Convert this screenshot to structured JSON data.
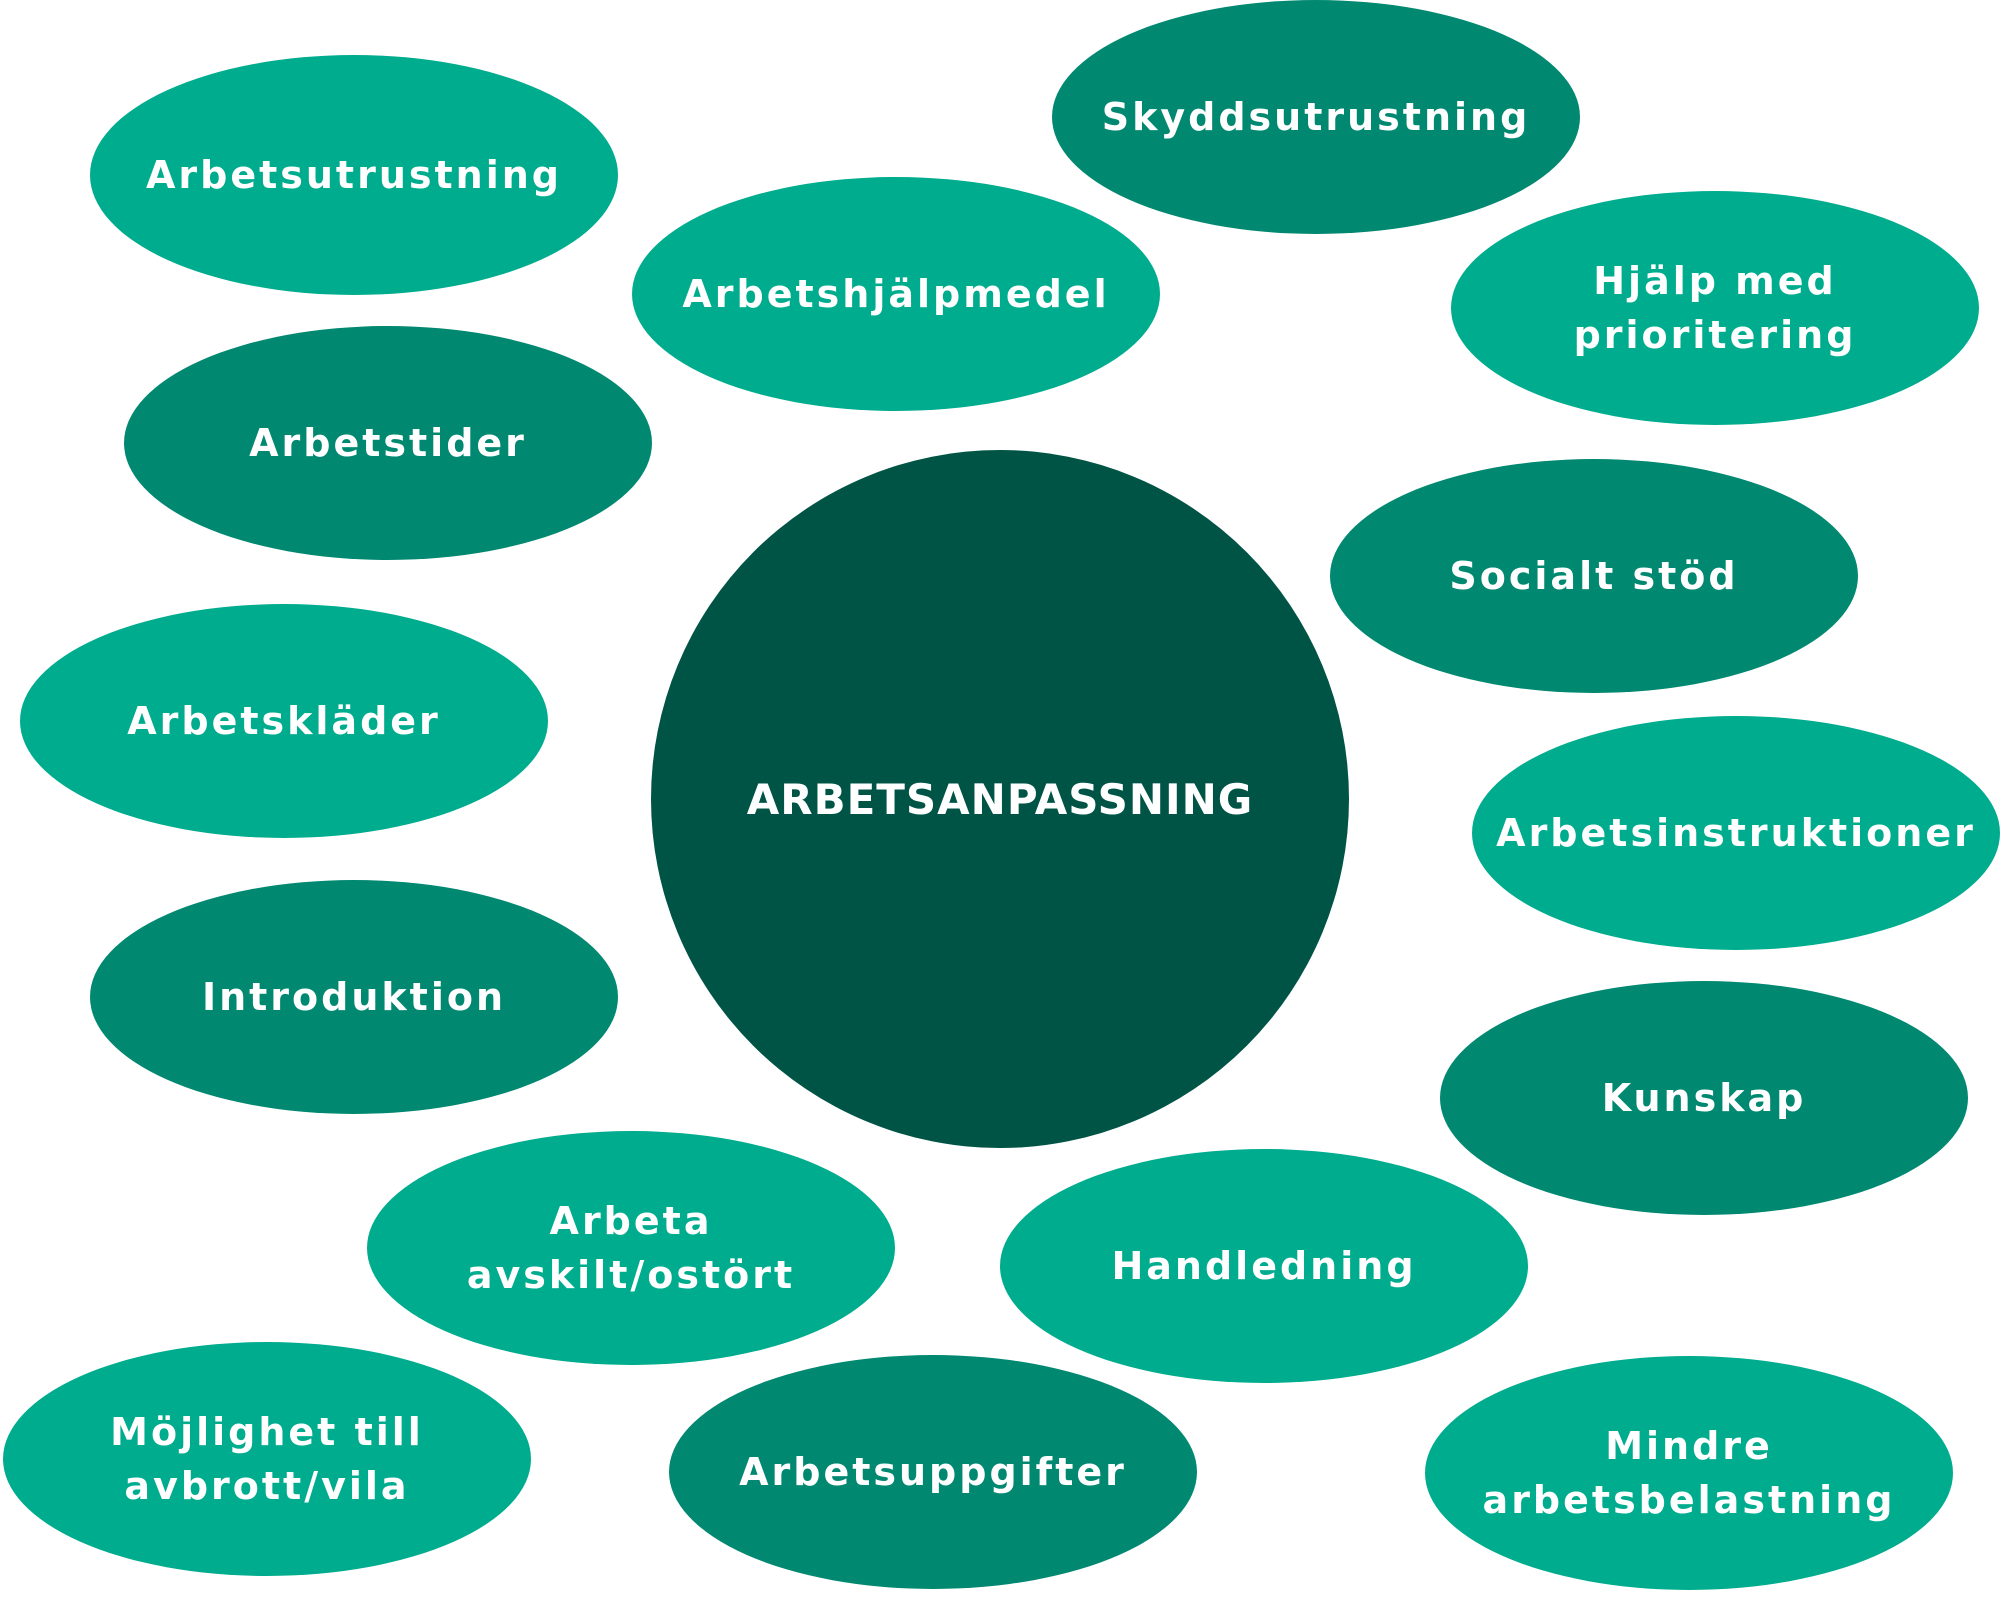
{
  "diagram": {
    "center": {
      "label": "ARBETSANPASSNING",
      "color": "#005446"
    },
    "colors": {
      "light": "#00ac8e",
      "mid": "#008870",
      "text": "#ffffff"
    },
    "bubbles": [
      {
        "label": "Arbetsutrustning",
        "tone": "light"
      },
      {
        "label": "Skyddsutrustning",
        "tone": "mid"
      },
      {
        "label": "Arbetshjälpmedel",
        "tone": "light"
      },
      {
        "label": "Hjälp med\nprioritering",
        "tone": "light"
      },
      {
        "label": "Arbetstider",
        "tone": "mid"
      },
      {
        "label": "Socialt stöd",
        "tone": "mid"
      },
      {
        "label": "Arbetskläder",
        "tone": "light"
      },
      {
        "label": "Arbetsinstruktioner",
        "tone": "light"
      },
      {
        "label": "Introduktion",
        "tone": "mid"
      },
      {
        "label": "Kunskap",
        "tone": "mid"
      },
      {
        "label": "Arbeta\navskilt/ostört",
        "tone": "light"
      },
      {
        "label": "Handledning",
        "tone": "light"
      },
      {
        "label": "Möjlighet till\navbrott/vila",
        "tone": "light"
      },
      {
        "label": "Arbetsuppgifter",
        "tone": "mid"
      },
      {
        "label": "Mindre\narbetsbelastning",
        "tone": "light"
      }
    ]
  }
}
